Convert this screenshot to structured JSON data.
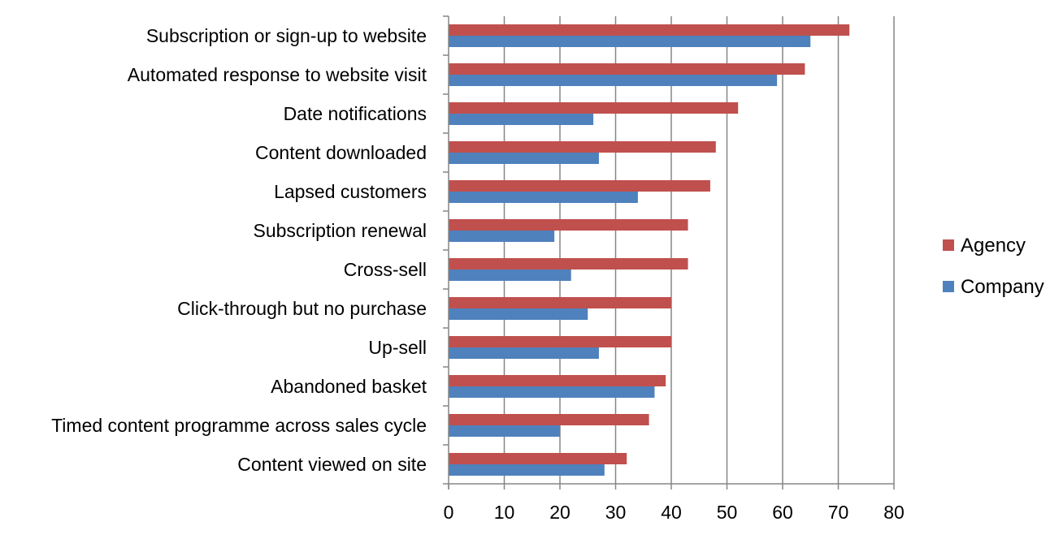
{
  "chart_data": {
    "type": "bar",
    "orientation": "horizontal",
    "categories": [
      "Subscription or sign-up to website",
      "Automated response to website visit",
      "Date notifications",
      "Content downloaded",
      "Lapsed customers",
      "Subscription renewal",
      "Cross-sell",
      "Click-through but no purchase",
      "Up-sell",
      "Abandoned basket",
      "Timed content programme across sales cycle",
      "Content viewed on site"
    ],
    "series": [
      {
        "name": "Agency",
        "color": "#c0504d",
        "values": [
          72,
          64,
          52,
          48,
          47,
          43,
          43,
          40,
          40,
          39,
          36,
          32
        ]
      },
      {
        "name": "Company",
        "color": "#4f81bd",
        "values": [
          65,
          59,
          26,
          27,
          34,
          19,
          22,
          25,
          27,
          37,
          20,
          28
        ]
      }
    ],
    "xlim": [
      0,
      80
    ],
    "xticks": [
      "0",
      "10",
      "20",
      "30",
      "40",
      "50",
      "60",
      "70",
      "80"
    ],
    "grid": "vertical",
    "legend_position": "right"
  }
}
